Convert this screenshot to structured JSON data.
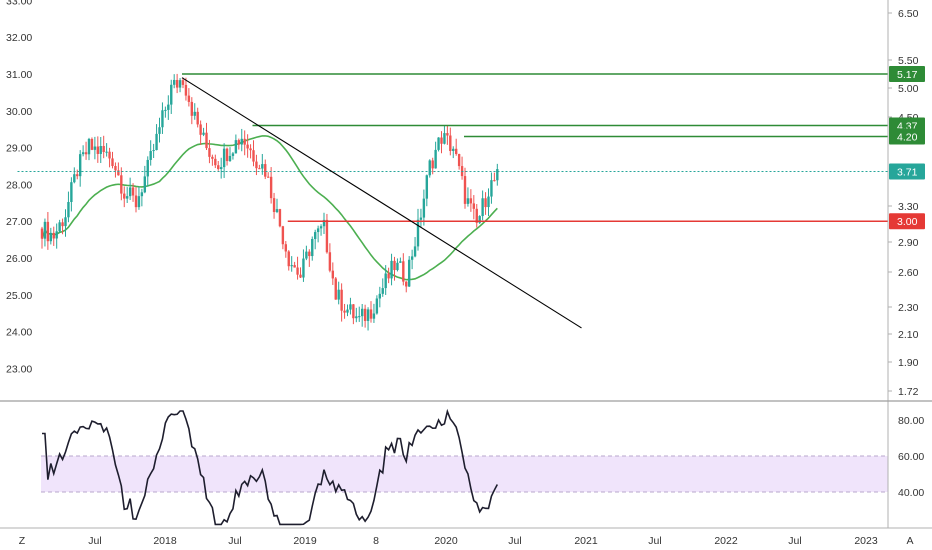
{
  "chart_data": {
    "type": "candlestick",
    "price_panel": {
      "left_axis_ticks": [
        "33.00",
        "32.00",
        "31.00",
        "30.00",
        "29.00",
        "28.00",
        "27.00",
        "26.00",
        "25.00",
        "24.00",
        "23.00"
      ],
      "left_axis_values": [
        33,
        32,
        31,
        30,
        29,
        28,
        27,
        26,
        25,
        24,
        23
      ],
      "right_axis_ticks": [
        "6.50",
        "5.50",
        "5.00",
        "4.50",
        "3.30",
        "2.90",
        "2.60",
        "2.30",
        "2.10",
        "1.90",
        "1.72"
      ],
      "right_axis_values": [
        6.5,
        5.5,
        5.0,
        4.5,
        3.3,
        2.9,
        2.6,
        2.3,
        2.1,
        1.9,
        1.72
      ],
      "level_lines": [
        {
          "label": "5.17",
          "price": 31.0,
          "start_date": "2018-03",
          "color": "#2e8b36"
        },
        {
          "label": "4.37",
          "price": 29.6,
          "start_date": "2018-09",
          "color": "#2e8b36"
        },
        {
          "label": "4.20",
          "price": 29.3,
          "start_date": "2020-03",
          "color": "#2e8b36"
        },
        {
          "label": "3.71",
          "price": 28.35,
          "start_date": "2017-01",
          "color": "#26a69a",
          "dotted": true
        },
        {
          "label": "3.00",
          "price": 27.0,
          "start_date": "2018-12",
          "color": "#e53935"
        }
      ],
      "trendline": {
        "from": {
          "date": "2018-03",
          "price": 30.9
        },
        "to": {
          "date": "2021-01",
          "price": 24.1
        }
      },
      "ma_color": "#4caf50"
    },
    "rsi_panel": {
      "ticks": [
        "80.00",
        "60.00",
        "40.00"
      ],
      "tick_values": [
        80,
        60,
        40
      ],
      "band": [
        40,
        60
      ],
      "band_color": "#f0e4fb"
    },
    "x_axis_labels": [
      "Jul",
      "2018",
      "Jul",
      "2019",
      "8",
      "2020",
      "Jul",
      "2021",
      "Jul",
      "2022",
      "Jul",
      "2023"
    ],
    "bottom_left_label": "Z",
    "bottom_right_label": "A",
    "colors": {
      "up": "#26a69a",
      "down": "#ef5350",
      "rsi_line": "#1e1e2e"
    }
  }
}
